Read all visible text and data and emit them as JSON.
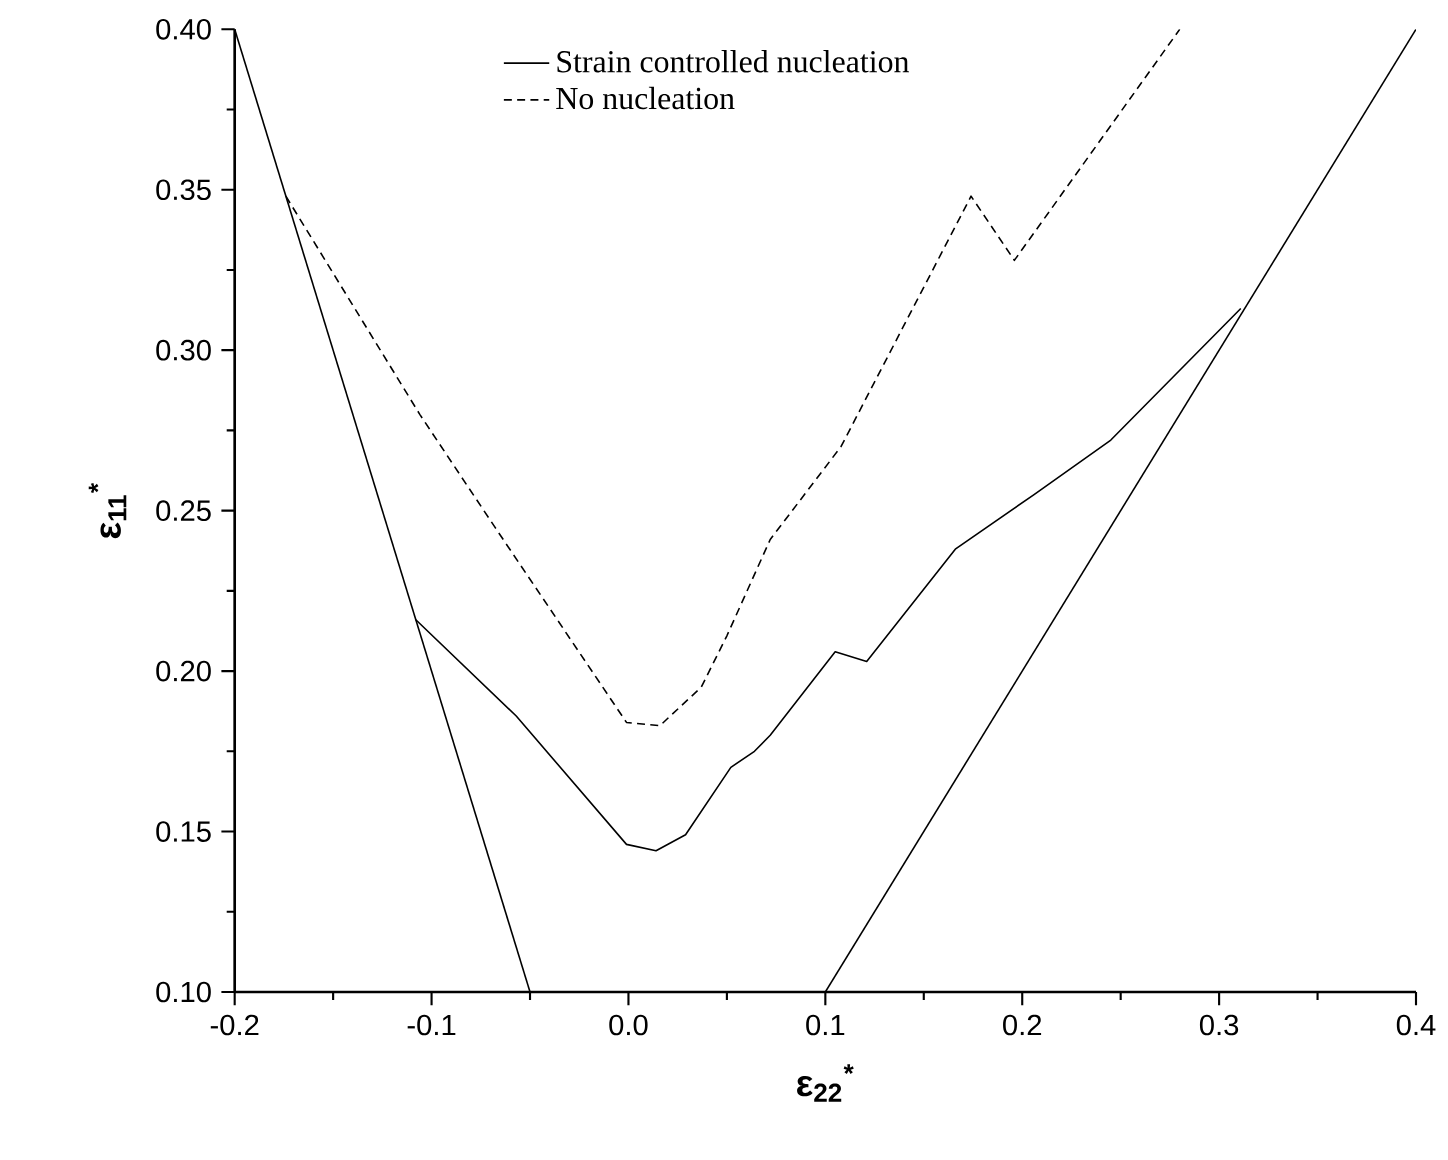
{
  "chart_data": {
    "type": "line",
    "xlabel": "ε$_{22}$$^{*}$",
    "ylabel": "ε$_{11}$$^{*}$",
    "xlim": [
      -0.2,
      0.4
    ],
    "ylim": [
      0.1,
      0.4
    ],
    "xticks": [
      {
        "value": -0.2,
        "label": "-0.2"
      },
      {
        "value": -0.1,
        "label": "-0.1"
      },
      {
        "value": 0,
        "label": "0.0"
      },
      {
        "value": 0.1,
        "label": "0.1"
      },
      {
        "value": 0.2,
        "label": "0.2"
      },
      {
        "value": 0.3,
        "label": "0.3"
      },
      {
        "value": 0.4,
        "label": "0.4"
      }
    ],
    "yticks": [
      {
        "value": 0.1,
        "label": "0.10"
      },
      {
        "value": 0.15,
        "label": "0.15"
      },
      {
        "value": 0.2,
        "label": "0.20"
      },
      {
        "value": 0.25,
        "label": "0.25"
      },
      {
        "value": 0.3,
        "label": "0.30"
      },
      {
        "value": 0.35,
        "label": "0.35"
      },
      {
        "value": 0.4,
        "label": "0.40"
      }
    ],
    "legend": "top",
    "marker": "none",
    "series": [
      {
        "name": "Strain controlled nucleation",
        "color": "#000000",
        "line_style": "solid",
        "x": [
          -0.108,
          -0.057,
          -0.001,
          0.014,
          0.029,
          0.052,
          0.064,
          0.072,
          0.105,
          0.121,
          0.166,
          0.206,
          0.245,
          0.311
        ],
        "values": [
          0.216,
          0.186,
          0.146,
          0.144,
          0.149,
          0.17,
          0.175,
          0.18,
          0.206,
          0.203,
          0.238,
          0.255,
          0.272,
          0.313
        ]
      },
      {
        "name": "No nucleation",
        "color": "#000000",
        "line_style": "dashed",
        "x": [
          -0.174,
          -0.106,
          -0.068,
          -0.001,
          0.016,
          0.037,
          0.05,
          0.072,
          0.108,
          0.174,
          0.196,
          0.28
        ],
        "values": [
          0.348,
          0.28,
          0.245,
          0.184,
          0.183,
          0.195,
          0.211,
          0.241,
          0.27,
          0.348,
          0.328,
          0.4
        ]
      },
      {
        "color": "#000000",
        "line_style": "solid",
        "x": [
          -0.2,
          -0.05
        ],
        "values": [
          0.4,
          0.1
        ]
      },
      {
        "color": "#000000",
        "line_style": "solid",
        "x": [
          0.1,
          0.4
        ],
        "values": [
          0.1,
          0.4
        ]
      }
    ]
  }
}
